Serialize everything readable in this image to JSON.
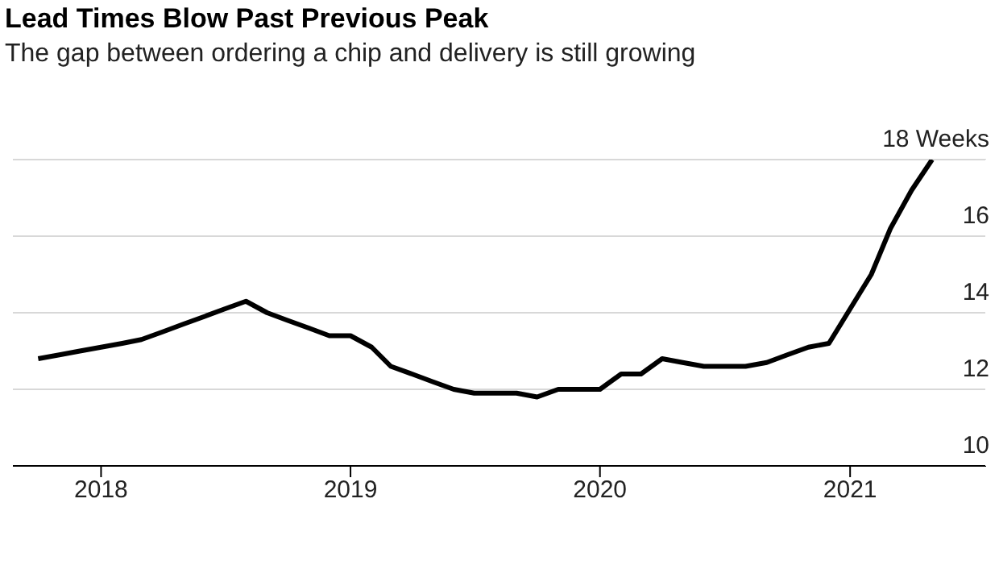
{
  "chart_data": {
    "type": "line",
    "title": "Lead Times Blow Past Previous Peak",
    "subtitle": "The gap between ordering a chip and delivery is still growing",
    "x": [
      "2017-10",
      "2017-11",
      "2017-12",
      "2018-01",
      "2018-02",
      "2018-03",
      "2018-04",
      "2018-05",
      "2018-06",
      "2018-07",
      "2018-08",
      "2018-09",
      "2018-10",
      "2018-11",
      "2018-12",
      "2019-01",
      "2019-02",
      "2019-03",
      "2019-04",
      "2019-05",
      "2019-06",
      "2019-07",
      "2019-08",
      "2019-09",
      "2019-10",
      "2019-11",
      "2019-12",
      "2020-01",
      "2020-02",
      "2020-03",
      "2020-04",
      "2020-05",
      "2020-06",
      "2020-07",
      "2020-08",
      "2020-09",
      "2020-10",
      "2020-11",
      "2020-12",
      "2021-01",
      "2021-02",
      "2021-03",
      "2021-04",
      "2021-05"
    ],
    "series": [
      {
        "color": "#000000",
        "values": [
          12.8,
          12.9,
          13.0,
          13.1,
          13.2,
          13.3,
          13.5,
          13.7,
          13.9,
          14.1,
          14.3,
          14.0,
          13.8,
          13.6,
          13.4,
          13.4,
          13.1,
          12.6,
          12.4,
          12.2,
          12.0,
          11.9,
          11.9,
          11.9,
          11.8,
          12.0,
          12.0,
          12.0,
          12.4,
          12.4,
          12.8,
          12.7,
          12.6,
          12.6,
          12.6,
          12.7,
          12.9,
          13.1,
          13.2,
          14.1,
          15.0,
          16.2,
          17.2,
          18.0
        ]
      }
    ],
    "xlim": [
      "2017-08-25",
      "2021-07-19"
    ],
    "xticks": [
      "2018",
      "2019",
      "2020",
      "2021"
    ],
    "ylim": [
      10,
      18
    ],
    "yticks": [
      10,
      12,
      14,
      16,
      {
        "value": 18,
        "label": "18 Weeks"
      }
    ],
    "grid": "y"
  }
}
